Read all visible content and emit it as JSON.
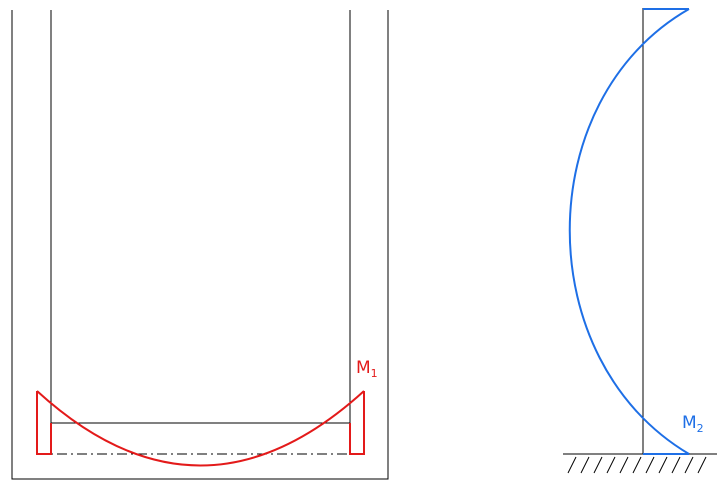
{
  "labels": {
    "m1_main": "M",
    "m1_sub": "1",
    "m2_main": "M",
    "m2_sub": "2"
  },
  "colors": {
    "structure": "#000000",
    "m1": "#e31a1a",
    "m2": "#1e6fe6",
    "background": "#ffffff"
  }
}
